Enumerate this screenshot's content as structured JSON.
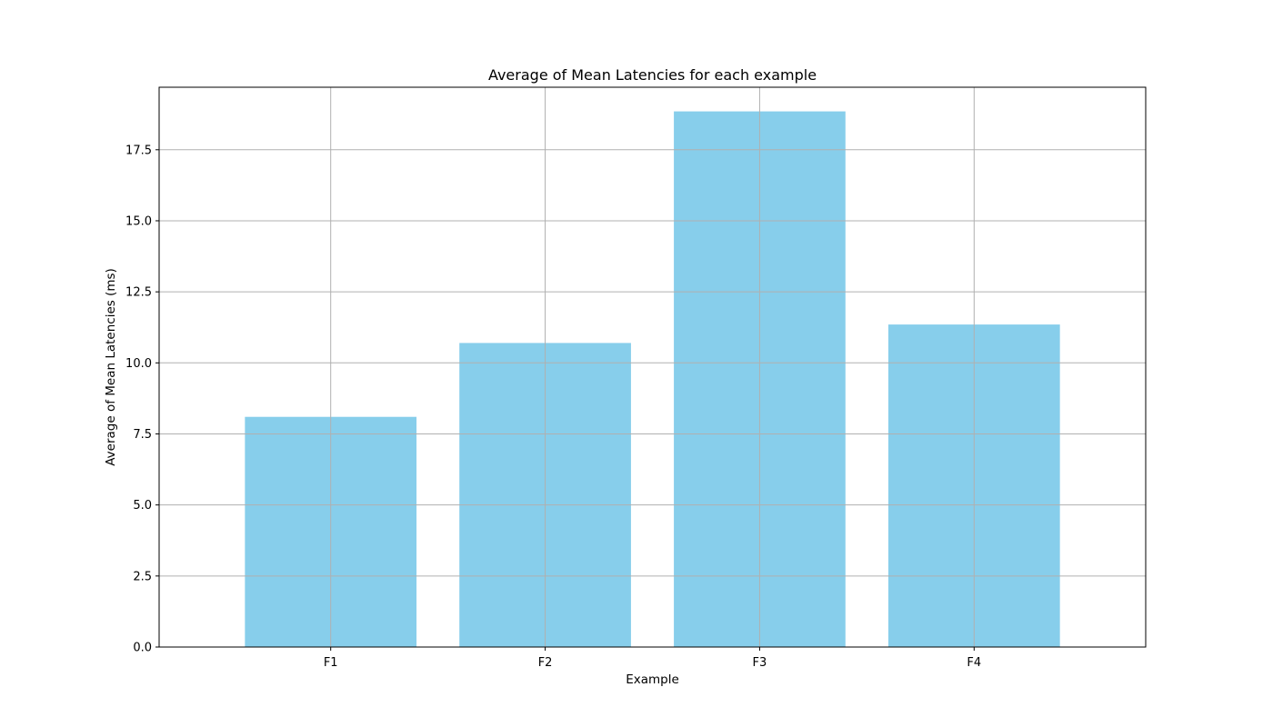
{
  "chart_data": {
    "type": "bar",
    "title": "Average of Mean Latencies for each example",
    "xlabel": "Example",
    "ylabel": "Average of Mean Latencies (ms)",
    "categories": [
      "F1",
      "F2",
      "F3",
      "F4"
    ],
    "values": [
      8.1,
      10.7,
      18.85,
      11.35
    ],
    "ylim": [
      0,
      19.7
    ],
    "yticks": [
      0.0,
      2.5,
      5.0,
      7.5,
      10.0,
      12.5,
      15.0,
      17.5
    ],
    "ytick_labels": [
      "0.0",
      "2.5",
      "5.0",
      "7.5",
      "10.0",
      "12.5",
      "15.0",
      "17.5"
    ],
    "grid": true,
    "bar_color": "#87ceeb",
    "grid_color": "#b0b0b0"
  }
}
